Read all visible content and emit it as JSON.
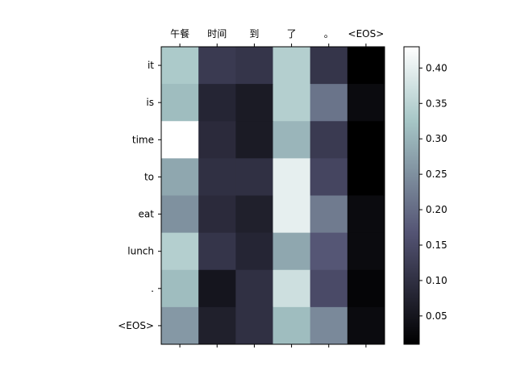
{
  "chart_data": {
    "type": "heatmap",
    "x_labels": [
      "午餐",
      "时间",
      "到",
      "了",
      "。",
      "<EOS>"
    ],
    "y_labels": [
      "it",
      "is",
      "time",
      "to",
      "eat",
      "lunch",
      ".",
      "<EOS>"
    ],
    "values": [
      [
        0.33,
        0.12,
        0.11,
        0.34,
        0.11,
        0.01
      ],
      [
        0.31,
        0.08,
        0.06,
        0.34,
        0.21,
        0.03
      ],
      [
        0.43,
        0.09,
        0.06,
        0.3,
        0.12,
        0.01
      ],
      [
        0.28,
        0.1,
        0.1,
        0.4,
        0.14,
        0.01
      ],
      [
        0.25,
        0.09,
        0.07,
        0.4,
        0.22,
        0.03
      ],
      [
        0.34,
        0.11,
        0.08,
        0.28,
        0.17,
        0.03
      ],
      [
        0.31,
        0.05,
        0.1,
        0.37,
        0.15,
        0.02
      ],
      [
        0.26,
        0.07,
        0.1,
        0.31,
        0.24,
        0.03
      ]
    ],
    "colormap": "bone",
    "vmin": 0.01,
    "vmax": 0.43,
    "colorbar_ticks": [
      "0.05",
      "0.10",
      "0.15",
      "0.20",
      "0.25",
      "0.30",
      "0.35",
      "0.40"
    ],
    "colorbar_tick_values": [
      0.05,
      0.1,
      0.15,
      0.2,
      0.25,
      0.3,
      0.35,
      0.4
    ],
    "x_axis_position": "top"
  }
}
